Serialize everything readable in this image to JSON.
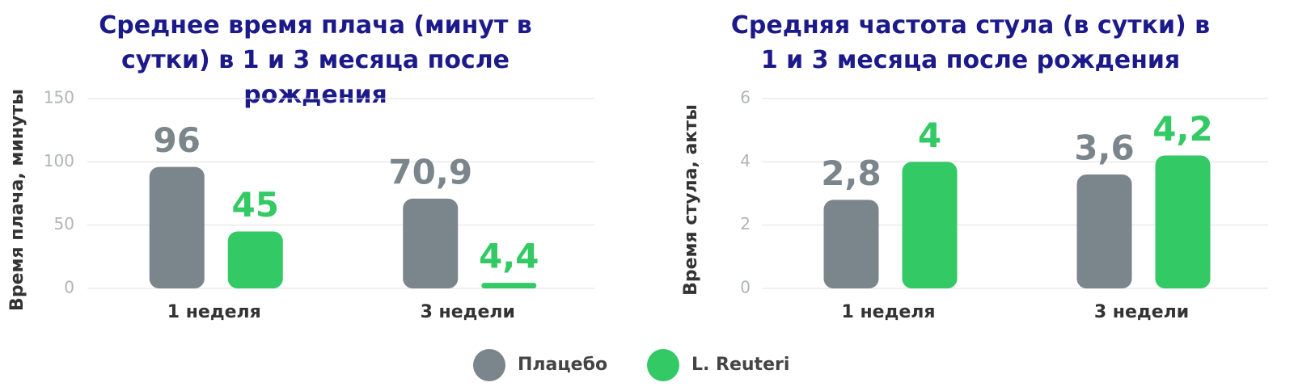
{
  "chart_data": [
    {
      "type": "bar",
      "title": "Среднее время плача (минут в сутки) в 1 и 3 месяца после рождения",
      "y_label": "Время плача, минуты",
      "categories": [
        "1 неделя",
        "3 недели"
      ],
      "series": [
        {
          "name": "Плацебо",
          "color": "#7b858c",
          "values": [
            96,
            70.9
          ],
          "value_labels": [
            "96",
            "70,9"
          ]
        },
        {
          "name": "L. Reuteri",
          "color": "#33c964",
          "values": [
            45,
            4.4
          ],
          "value_labels": [
            "45",
            "4,4"
          ]
        }
      ],
      "ylim": [
        0,
        150
      ],
      "yticks": [
        0,
        50,
        100,
        150
      ],
      "grid": true
    },
    {
      "type": "bar",
      "title": "Средняя частота стула (в сутки) в 1 и 3 месяца после рождения",
      "y_label": "Время стула, акты",
      "categories": [
        "1 неделя",
        "3 недели"
      ],
      "series": [
        {
          "color": "#7b858c",
          "values": [
            2.8,
            3.6
          ],
          "value_labels": [
            "2,8",
            "3,6"
          ]
        },
        {
          "color": "#33c964",
          "values": [
            4,
            4.2
          ],
          "value_labels": [
            "4",
            "4,2"
          ]
        }
      ],
      "ylim": [
        0,
        6
      ],
      "yticks": [
        0,
        2,
        4,
        6
      ],
      "grid": true
    }
  ]
}
